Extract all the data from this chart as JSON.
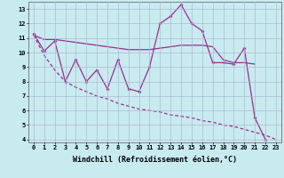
{
  "xlabel": "Windchill (Refroidissement éolien,°C)",
  "x_values": [
    0,
    1,
    2,
    3,
    4,
    5,
    6,
    7,
    8,
    9,
    10,
    11,
    12,
    13,
    14,
    15,
    16,
    17,
    18,
    19,
    20,
    21,
    22,
    23
  ],
  "line1_x": [
    0,
    1,
    2,
    3,
    4,
    5,
    6,
    7,
    8,
    9,
    10,
    11,
    12,
    13,
    14,
    15,
    16,
    17,
    18,
    19,
    20,
    21,
    22
  ],
  "line1_y": [
    11.3,
    10.1,
    10.8,
    8.0,
    9.5,
    8.0,
    8.8,
    7.5,
    9.5,
    7.5,
    7.3,
    9.0,
    12.0,
    12.5,
    13.3,
    12.0,
    11.5,
    9.3,
    9.3,
    9.2,
    10.3,
    5.5,
    4.0
  ],
  "line2_x": [
    0,
    1,
    2,
    3,
    4,
    5,
    6,
    7,
    8,
    9,
    10,
    11,
    12,
    13,
    14,
    15,
    16,
    17,
    18,
    19,
    20,
    21
  ],
  "line2_y": [
    11.2,
    10.9,
    10.9,
    10.8,
    10.7,
    10.6,
    10.5,
    10.4,
    10.3,
    10.2,
    10.2,
    10.2,
    10.3,
    10.4,
    10.5,
    10.5,
    10.5,
    10.4,
    9.5,
    9.3,
    9.3,
    9.2
  ],
  "line3_x": [
    0,
    1,
    2,
    3,
    4,
    5,
    6,
    7,
    8,
    9,
    10,
    11,
    12,
    13,
    14,
    15,
    16,
    17,
    18,
    19,
    20,
    21,
    22,
    23
  ],
  "line3_y": [
    11.2,
    9.8,
    8.8,
    8.0,
    7.6,
    7.3,
    7.0,
    6.8,
    6.5,
    6.3,
    6.1,
    6.0,
    5.9,
    5.7,
    5.6,
    5.5,
    5.3,
    5.2,
    5.0,
    4.9,
    4.7,
    4.5,
    4.3,
    4.0
  ],
  "line_color": "#9B2D8E",
  "bg_color": "#C8EBF0",
  "grid_color": "#B0B8D0",
  "ylim": [
    3.8,
    13.5
  ],
  "xlim": [
    -0.5,
    23.5
  ],
  "yticks": [
    4,
    5,
    6,
    7,
    8,
    9,
    10,
    11,
    12,
    13
  ],
  "xticks": [
    0,
    1,
    2,
    3,
    4,
    5,
    6,
    7,
    8,
    9,
    10,
    11,
    12,
    13,
    14,
    15,
    16,
    17,
    18,
    19,
    20,
    21,
    22,
    23
  ],
  "tick_fontsize": 5.0,
  "label_fontsize": 6.0,
  "marker_size": 2.0,
  "linewidth": 0.9
}
